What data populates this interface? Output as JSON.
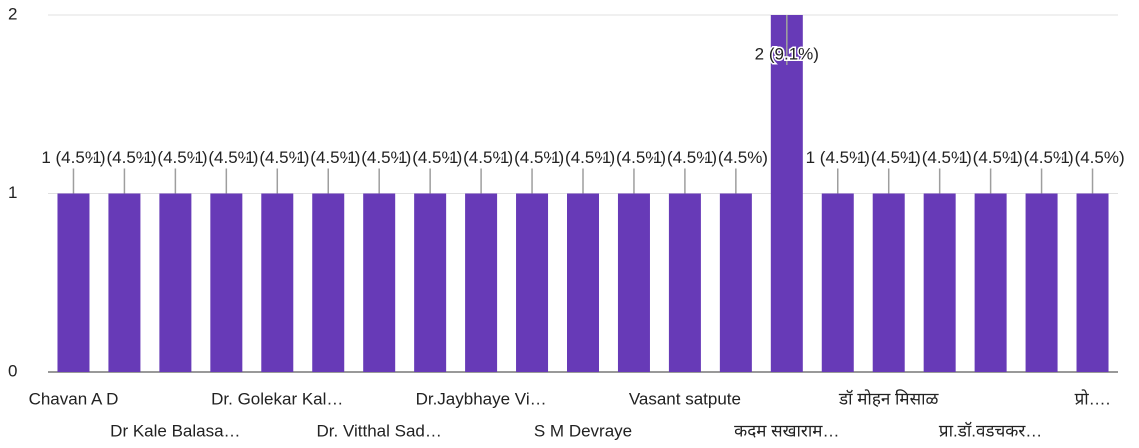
{
  "chart_data": {
    "type": "bar",
    "categories": [
      "Chavan A D",
      null,
      "Dr Kale Balasa…",
      null,
      "Dr. Golekar Kal…",
      null,
      "Dr. Vitthal Sad…",
      null,
      "Dr.Jaybhaye Vi…",
      null,
      "S M Devraye",
      null,
      "Vasant satpute",
      null,
      "कदम सखाराम…",
      null,
      "डॉ मोहन मिसाळ",
      null,
      "प्रा.डॉ.वडचकर…",
      null,
      "प्रो…."
    ],
    "values": [
      1,
      1,
      1,
      1,
      1,
      1,
      1,
      1,
      1,
      1,
      1,
      1,
      1,
      1,
      2,
      1,
      1,
      1,
      1,
      1,
      1
    ],
    "value_labels": [
      "1 (4.5%)",
      "1 (4.5%)",
      "1 (4.5%)",
      "1 (4.5%)",
      "1 (4.5%)",
      "1 (4.5%)",
      "1 (4.5%)",
      "1 (4.5%)",
      "1 (4.5%)",
      "1 (4.5%)",
      "1 (4.5%)",
      "1 (4.5%)",
      "1 (4.5%)",
      "1 (4.5%)",
      "2 (9.1%)",
      "1 (4.5%)",
      "1 (4.5%)",
      "1 (4.5%)",
      "1 (4.5%)",
      "1 (4.5%)",
      "1 (4.5%)"
    ],
    "color": "#673ab7",
    "ylim": [
      0,
      2
    ],
    "yticks": [
      0,
      1,
      2
    ],
    "grid": true
  }
}
